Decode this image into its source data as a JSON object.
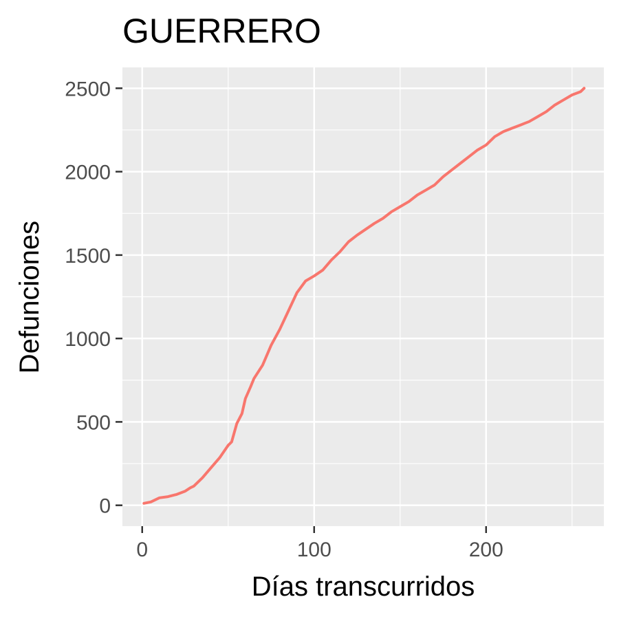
{
  "chart_data": {
    "type": "line",
    "title": "GUERRERO",
    "xlabel": "Días transcurridos",
    "ylabel": "Defunciones",
    "xlim": [
      -11.5,
      268.5
    ],
    "ylim": [
      -125,
      2625
    ],
    "x_ticks": [
      0,
      100,
      200
    ],
    "x_tick_labels": [
      "0",
      "100",
      "200"
    ],
    "y_ticks": [
      0,
      500,
      1000,
      1500,
      2000,
      2500
    ],
    "y_tick_labels": [
      "0",
      "500",
      "1000",
      "1500",
      "2000",
      "2500"
    ],
    "grid": true,
    "legend": "none",
    "colors": {
      "panel_background": "#ebebeb",
      "grid_line": "#ffffff",
      "series_line": "#f8766d",
      "tick_label": "#4d4d4d"
    },
    "series": [
      {
        "x": [
          1,
          5,
          10,
          15,
          20,
          25,
          28,
          30,
          35,
          40,
          45,
          50,
          52,
          55,
          58,
          60,
          63,
          65,
          70,
          75,
          80,
          85,
          90,
          95,
          100,
          105,
          110,
          115,
          120,
          125,
          130,
          135,
          140,
          145,
          150,
          155,
          160,
          165,
          170,
          175,
          180,
          185,
          190,
          195,
          200,
          205,
          210,
          215,
          220,
          225,
          230,
          235,
          240,
          245,
          250,
          255,
          257
        ],
        "y": [
          12,
          20,
          45,
          52,
          65,
          85,
          105,
          115,
          165,
          225,
          285,
          360,
          380,
          490,
          550,
          640,
          710,
          760,
          840,
          960,
          1055,
          1165,
          1275,
          1345,
          1375,
          1410,
          1470,
          1520,
          1580,
          1620,
          1655,
          1690,
          1720,
          1760,
          1790,
          1820,
          1860,
          1890,
          1920,
          1970,
          2010,
          2050,
          2090,
          2130,
          2160,
          2210,
          2240,
          2260,
          2280,
          2300,
          2330,
          2360,
          2400,
          2430,
          2460,
          2480,
          2500
        ]
      }
    ]
  }
}
